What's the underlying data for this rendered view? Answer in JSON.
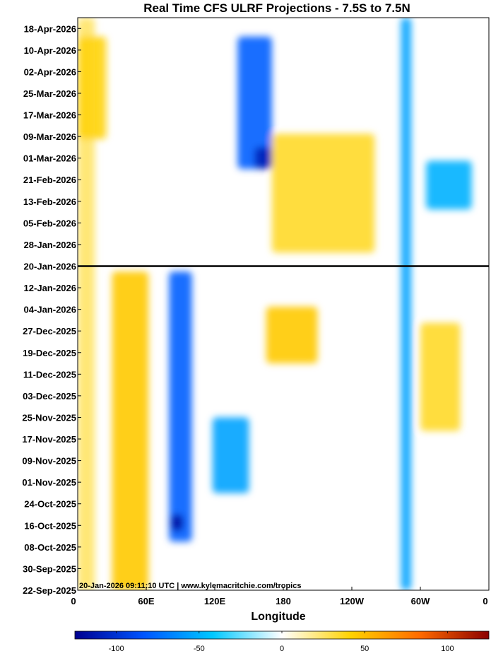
{
  "chart_data": {
    "type": "heatmap",
    "title": "Real Time CFS ULRF Projections - 7.5S to 7.5N",
    "xlabel": "Longitude",
    "ylabel": "",
    "x_ticks": [
      {
        "lon": 0,
        "label": "0"
      },
      {
        "lon": 60,
        "label": "60E"
      },
      {
        "lon": 120,
        "label": "120E"
      },
      {
        "lon": 180,
        "label": "180"
      },
      {
        "lon": 240,
        "label": "120W"
      },
      {
        "lon": 300,
        "label": "60W"
      },
      {
        "lon": 360,
        "label": "0"
      }
    ],
    "xlim": [
      0,
      360
    ],
    "ylim": [
      "2025-09-22",
      "2026-04-22"
    ],
    "y_ticks": [
      {
        "date": "2025-09-22",
        "label": "22-Sep-2025"
      },
      {
        "date": "2025-09-30",
        "label": "30-Sep-2025"
      },
      {
        "date": "2025-10-08",
        "label": "08-Oct-2025"
      },
      {
        "date": "2025-10-16",
        "label": "16-Oct-2025"
      },
      {
        "date": "2025-10-24",
        "label": "24-Oct-2025"
      },
      {
        "date": "2025-11-01",
        "label": "01-Nov-2025"
      },
      {
        "date": "2025-11-09",
        "label": "09-Nov-2025"
      },
      {
        "date": "2025-11-17",
        "label": "17-Nov-2025"
      },
      {
        "date": "2025-11-25",
        "label": "25-Nov-2025"
      },
      {
        "date": "2025-12-03",
        "label": "03-Dec-2025"
      },
      {
        "date": "2025-12-11",
        "label": "11-Dec-2025"
      },
      {
        "date": "2025-12-19",
        "label": "19-Dec-2025"
      },
      {
        "date": "2025-12-27",
        "label": "27-Dec-2025"
      },
      {
        "date": "2026-01-04",
        "label": "04-Jan-2026"
      },
      {
        "date": "2026-01-12",
        "label": "12-Jan-2026"
      },
      {
        "date": "2026-01-20",
        "label": "20-Jan-2026"
      },
      {
        "date": "2026-01-28",
        "label": "28-Jan-2026"
      },
      {
        "date": "2026-02-05",
        "label": "05-Feb-2026"
      },
      {
        "date": "2026-02-13",
        "label": "13-Feb-2026"
      },
      {
        "date": "2026-02-21",
        "label": "21-Feb-2026"
      },
      {
        "date": "2026-03-01",
        "label": "01-Mar-2026"
      },
      {
        "date": "2026-03-09",
        "label": "09-Mar-2026"
      },
      {
        "date": "2026-03-17",
        "label": "17-Mar-2026"
      },
      {
        "date": "2026-03-25",
        "label": "25-Mar-2026"
      },
      {
        "date": "2026-04-02",
        "label": "02-Apr-2026"
      },
      {
        "date": "2026-04-10",
        "label": "10-Apr-2026"
      },
      {
        "date": "2026-04-18",
        "label": "18-Apr-2026"
      }
    ],
    "current_date_line": "2026-01-20",
    "colorbar": {
      "range": [
        -125,
        125
      ],
      "ticks": [
        {
          "value": -100,
          "label": "-100"
        },
        {
          "value": -50,
          "label": "-50"
        },
        {
          "value": 0,
          "label": "0"
        },
        {
          "value": 50,
          "label": "50"
        },
        {
          "value": 100,
          "label": "100"
        }
      ],
      "colors": [
        "#00008f",
        "#0055ff",
        "#00c8ff",
        "#ffffff",
        "#ffd200",
        "#ff6a00",
        "#8b0000"
      ]
    },
    "anomaly_features": [
      {
        "lon": [
          80,
          100
        ],
        "date": [
          "2025-10-10",
          "2026-01-18"
        ],
        "value": -80
      },
      {
        "lon": [
          82,
          92
        ],
        "date": [
          "2025-10-14",
          "2025-10-20"
        ],
        "value": -120
      },
      {
        "lon": [
          118,
          150
        ],
        "date": [
          "2025-10-28",
          "2025-11-25"
        ],
        "value": -55
      },
      {
        "lon": [
          283,
          292
        ],
        "date": [
          "2025-09-22",
          "2026-04-22"
        ],
        "value": -55
      },
      {
        "lon": [
          30,
          62
        ],
        "date": [
          "2025-09-22",
          "2026-01-18"
        ],
        "value": 45
      },
      {
        "lon": [
          0,
          15
        ],
        "date": [
          "2025-09-22",
          "2026-04-22"
        ],
        "value": 25
      },
      {
        "lon": [
          165,
          210
        ],
        "date": [
          "2025-12-15",
          "2026-01-05"
        ],
        "value": 45
      },
      {
        "lon": [
          300,
          335
        ],
        "date": [
          "2025-11-20",
          "2025-12-30"
        ],
        "value": 35
      },
      {
        "lon": [
          140,
          170
        ],
        "date": [
          "2026-02-25",
          "2026-04-15"
        ],
        "value": -80
      },
      {
        "lon": [
          155,
          170
        ],
        "date": [
          "2026-02-25",
          "2026-03-05"
        ],
        "value": -110
      },
      {
        "lon": [
          305,
          345
        ],
        "date": [
          "2026-02-10",
          "2026-02-28"
        ],
        "value": -50
      },
      {
        "lon": [
          0,
          25
        ],
        "date": [
          "2026-03-08",
          "2026-04-15"
        ],
        "value": 40
      },
      {
        "lon": [
          170,
          260
        ],
        "date": [
          "2026-01-25",
          "2026-03-10"
        ],
        "value": 35
      }
    ]
  },
  "footer_text": "20-Jan-2026 09:11:10 UTC | www.kylemacritchie.com/tropics"
}
